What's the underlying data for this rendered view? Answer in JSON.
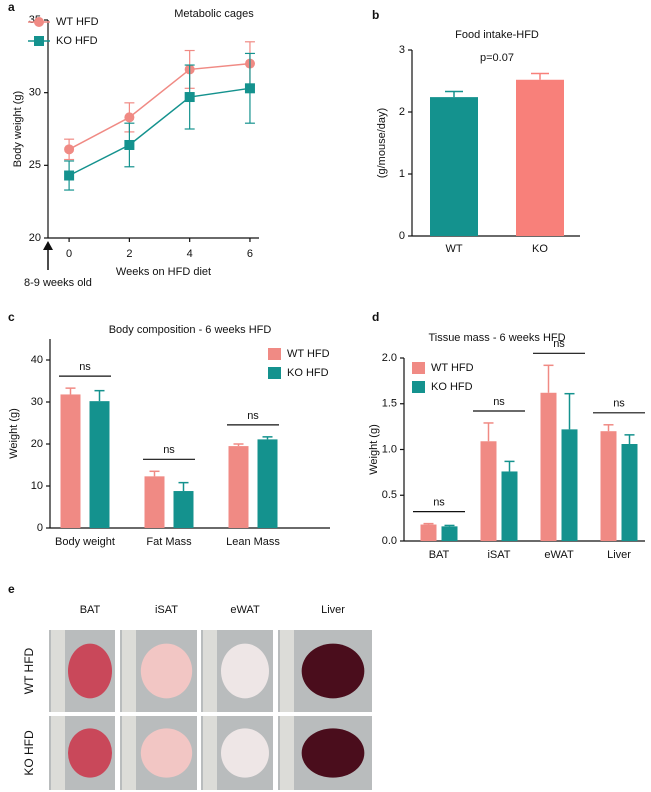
{
  "chart_data": [
    {
      "type": "line",
      "panel": "a",
      "annotation": "Metabolic cages",
      "x_note": "8-9 weeks old",
      "xlabel": "Weeks on HFD diet",
      "ylabel": "Body weight (g)",
      "x": [
        0,
        2,
        4,
        6
      ],
      "xlim": [
        -0.7,
        6.3
      ],
      "xticks": [
        0,
        2,
        4,
        6
      ],
      "ylim": [
        20,
        35
      ],
      "yticks": [
        20,
        25,
        30,
        35
      ],
      "legend": "upper left",
      "series": [
        {
          "name": "WT HFD",
          "color": "#f08a84",
          "marker": "circle",
          "values": [
            26.1,
            28.3,
            31.6,
            32.0
          ],
          "errors": [
            0.7,
            1.0,
            1.3,
            1.5
          ]
        },
        {
          "name": "KO HFD",
          "color": "#14928e",
          "marker": "square",
          "values": [
            24.3,
            26.4,
            29.7,
            30.3
          ],
          "errors": [
            1.0,
            1.5,
            2.2,
            2.4
          ]
        }
      ]
    },
    {
      "type": "bar",
      "panel": "b",
      "title": "Food intake-HFD",
      "annotation": "p=0.07",
      "ylabel": "(g/mouse/day)",
      "categories": [
        "WT",
        "KO"
      ],
      "values": [
        2.24,
        2.52
      ],
      "errors": [
        0.09,
        0.1
      ],
      "colors": [
        "#14928e",
        "#f8807a"
      ],
      "ylim": [
        0,
        3
      ],
      "yticks": [
        0,
        1,
        2,
        3
      ]
    },
    {
      "type": "grouped_bar",
      "panel": "c",
      "title": "Body composition - 6 weeks HFD",
      "ylabel": "Weight (g)",
      "categories": [
        "Body weight",
        "Fat Mass",
        "Lean Mass"
      ],
      "brackets": [
        "ns",
        "ns",
        "ns"
      ],
      "ylim": [
        0,
        45
      ],
      "yticks": [
        0,
        10,
        20,
        30,
        40
      ],
      "legend": "upper right",
      "series": [
        {
          "name": "WT HFD",
          "color": "#f08a84",
          "values": [
            31.8,
            12.3,
            19.5
          ],
          "errors": [
            1.5,
            1.2,
            0.5
          ]
        },
        {
          "name": "KO HFD",
          "color": "#14928e",
          "values": [
            30.2,
            8.8,
            21.1
          ],
          "errors": [
            2.5,
            2.0,
            0.6
          ]
        }
      ]
    },
    {
      "type": "grouped_bar",
      "panel": "d",
      "title": "Tissue mass - 6 weeks HFD",
      "ylabel": "Weight (g)",
      "categories": [
        "BAT",
        "iSAT",
        "eWAT",
        "Liver"
      ],
      "brackets": [
        "ns",
        "ns",
        "ns",
        "ns"
      ],
      "ylim": [
        0,
        2
      ],
      "yticks": [
        {
          "value": 0,
          "label": "0.0"
        },
        0.5,
        {
          "value": 1,
          "label": "1.0"
        },
        1.5,
        {
          "value": 2,
          "label": "2.0"
        }
      ],
      "legend": "upper left",
      "series": [
        {
          "name": "WT HFD",
          "color": "#f08a84",
          "values": [
            0.18,
            1.09,
            1.62,
            1.2
          ],
          "errors": [
            0.01,
            0.2,
            0.3,
            0.07
          ]
        },
        {
          "name": "KO HFD",
          "color": "#14928e",
          "values": [
            0.16,
            0.76,
            1.22,
            1.06
          ],
          "errors": [
            0.01,
            0.11,
            0.39,
            0.1
          ]
        }
      ]
    }
  ],
  "photos": {
    "panel": "e",
    "columns": [
      "BAT",
      "iSAT",
      "eWAT",
      "Liver"
    ],
    "rows": [
      "WT HFD",
      "KO HFD"
    ]
  }
}
